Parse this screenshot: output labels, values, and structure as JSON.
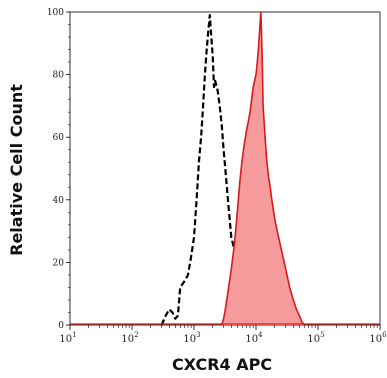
{
  "chart_data": {
    "type": "area",
    "xlabel": "CXCR4  APC",
    "ylabel": "Relative Cell Count",
    "x_scale": "log",
    "xlim": [
      10,
      1000000
    ],
    "ylim": [
      0,
      100
    ],
    "x_ticks": [
      {
        "base": "10",
        "exp": "1"
      },
      {
        "base": "10",
        "exp": "2"
      },
      {
        "base": "10",
        "exp": "3"
      },
      {
        "base": "10",
        "exp": "4"
      },
      {
        "base": "10",
        "exp": "5"
      },
      {
        "base": "10",
        "exp": "6"
      }
    ],
    "y_ticks": [
      "0",
      "20",
      "40",
      "60",
      "80",
      "100"
    ],
    "grid": false,
    "series": [
      {
        "style": "dashed",
        "color": "#000000",
        "fill": "none",
        "points": [
          [
            300,
            0
          ],
          [
            350,
            3
          ],
          [
            400,
            5
          ],
          [
            450,
            4
          ],
          [
            500,
            2
          ],
          [
            550,
            3
          ],
          [
            600,
            12
          ],
          [
            700,
            14
          ],
          [
            800,
            16
          ],
          [
            900,
            22
          ],
          [
            1000,
            28
          ],
          [
            1100,
            40
          ],
          [
            1200,
            52
          ],
          [
            1300,
            60
          ],
          [
            1400,
            70
          ],
          [
            1500,
            80
          ],
          [
            1600,
            88
          ],
          [
            1700,
            94
          ],
          [
            1800,
            99
          ],
          [
            1900,
            92
          ],
          [
            2000,
            86
          ],
          [
            2100,
            76
          ],
          [
            2200,
            78
          ],
          [
            2400,
            75
          ],
          [
            2600,
            70
          ],
          [
            2800,
            64
          ],
          [
            3000,
            56
          ],
          [
            3300,
            47
          ],
          [
            3600,
            38
          ],
          [
            4000,
            28
          ],
          [
            4500,
            24
          ],
          [
            5000,
            18
          ],
          [
            5500,
            12
          ],
          [
            6000,
            9
          ],
          [
            7000,
            5
          ],
          [
            8000,
            3
          ],
          [
            10000,
            2
          ],
          [
            12000,
            1
          ],
          [
            15000,
            0
          ]
        ]
      },
      {
        "style": "solid",
        "color": "#d91a1a",
        "fill": "#f59b9b",
        "points": [
          [
            2800,
            0
          ],
          [
            3000,
            2
          ],
          [
            3200,
            5
          ],
          [
            3500,
            10
          ],
          [
            4000,
            18
          ],
          [
            4500,
            26
          ],
          [
            5000,
            36
          ],
          [
            5500,
            46
          ],
          [
            6000,
            53
          ],
          [
            6500,
            58
          ],
          [
            7000,
            62
          ],
          [
            7500,
            65
          ],
          [
            8000,
            68
          ],
          [
            8500,
            72
          ],
          [
            9000,
            76
          ],
          [
            9500,
            78
          ],
          [
            10000,
            80
          ],
          [
            10500,
            84
          ],
          [
            11000,
            89
          ],
          [
            11500,
            95
          ],
          [
            12000,
            100
          ],
          [
            12500,
            88
          ],
          [
            13000,
            70
          ],
          [
            14000,
            60
          ],
          [
            15000,
            52
          ],
          [
            16000,
            47
          ],
          [
            17000,
            44
          ],
          [
            18000,
            40
          ],
          [
            20000,
            34
          ],
          [
            22000,
            30
          ],
          [
            25000,
            25
          ],
          [
            30000,
            18
          ],
          [
            35000,
            12
          ],
          [
            40000,
            8
          ],
          [
            45000,
            5
          ],
          [
            50000,
            3
          ],
          [
            55000,
            1
          ],
          [
            60000,
            0
          ]
        ]
      }
    ]
  }
}
